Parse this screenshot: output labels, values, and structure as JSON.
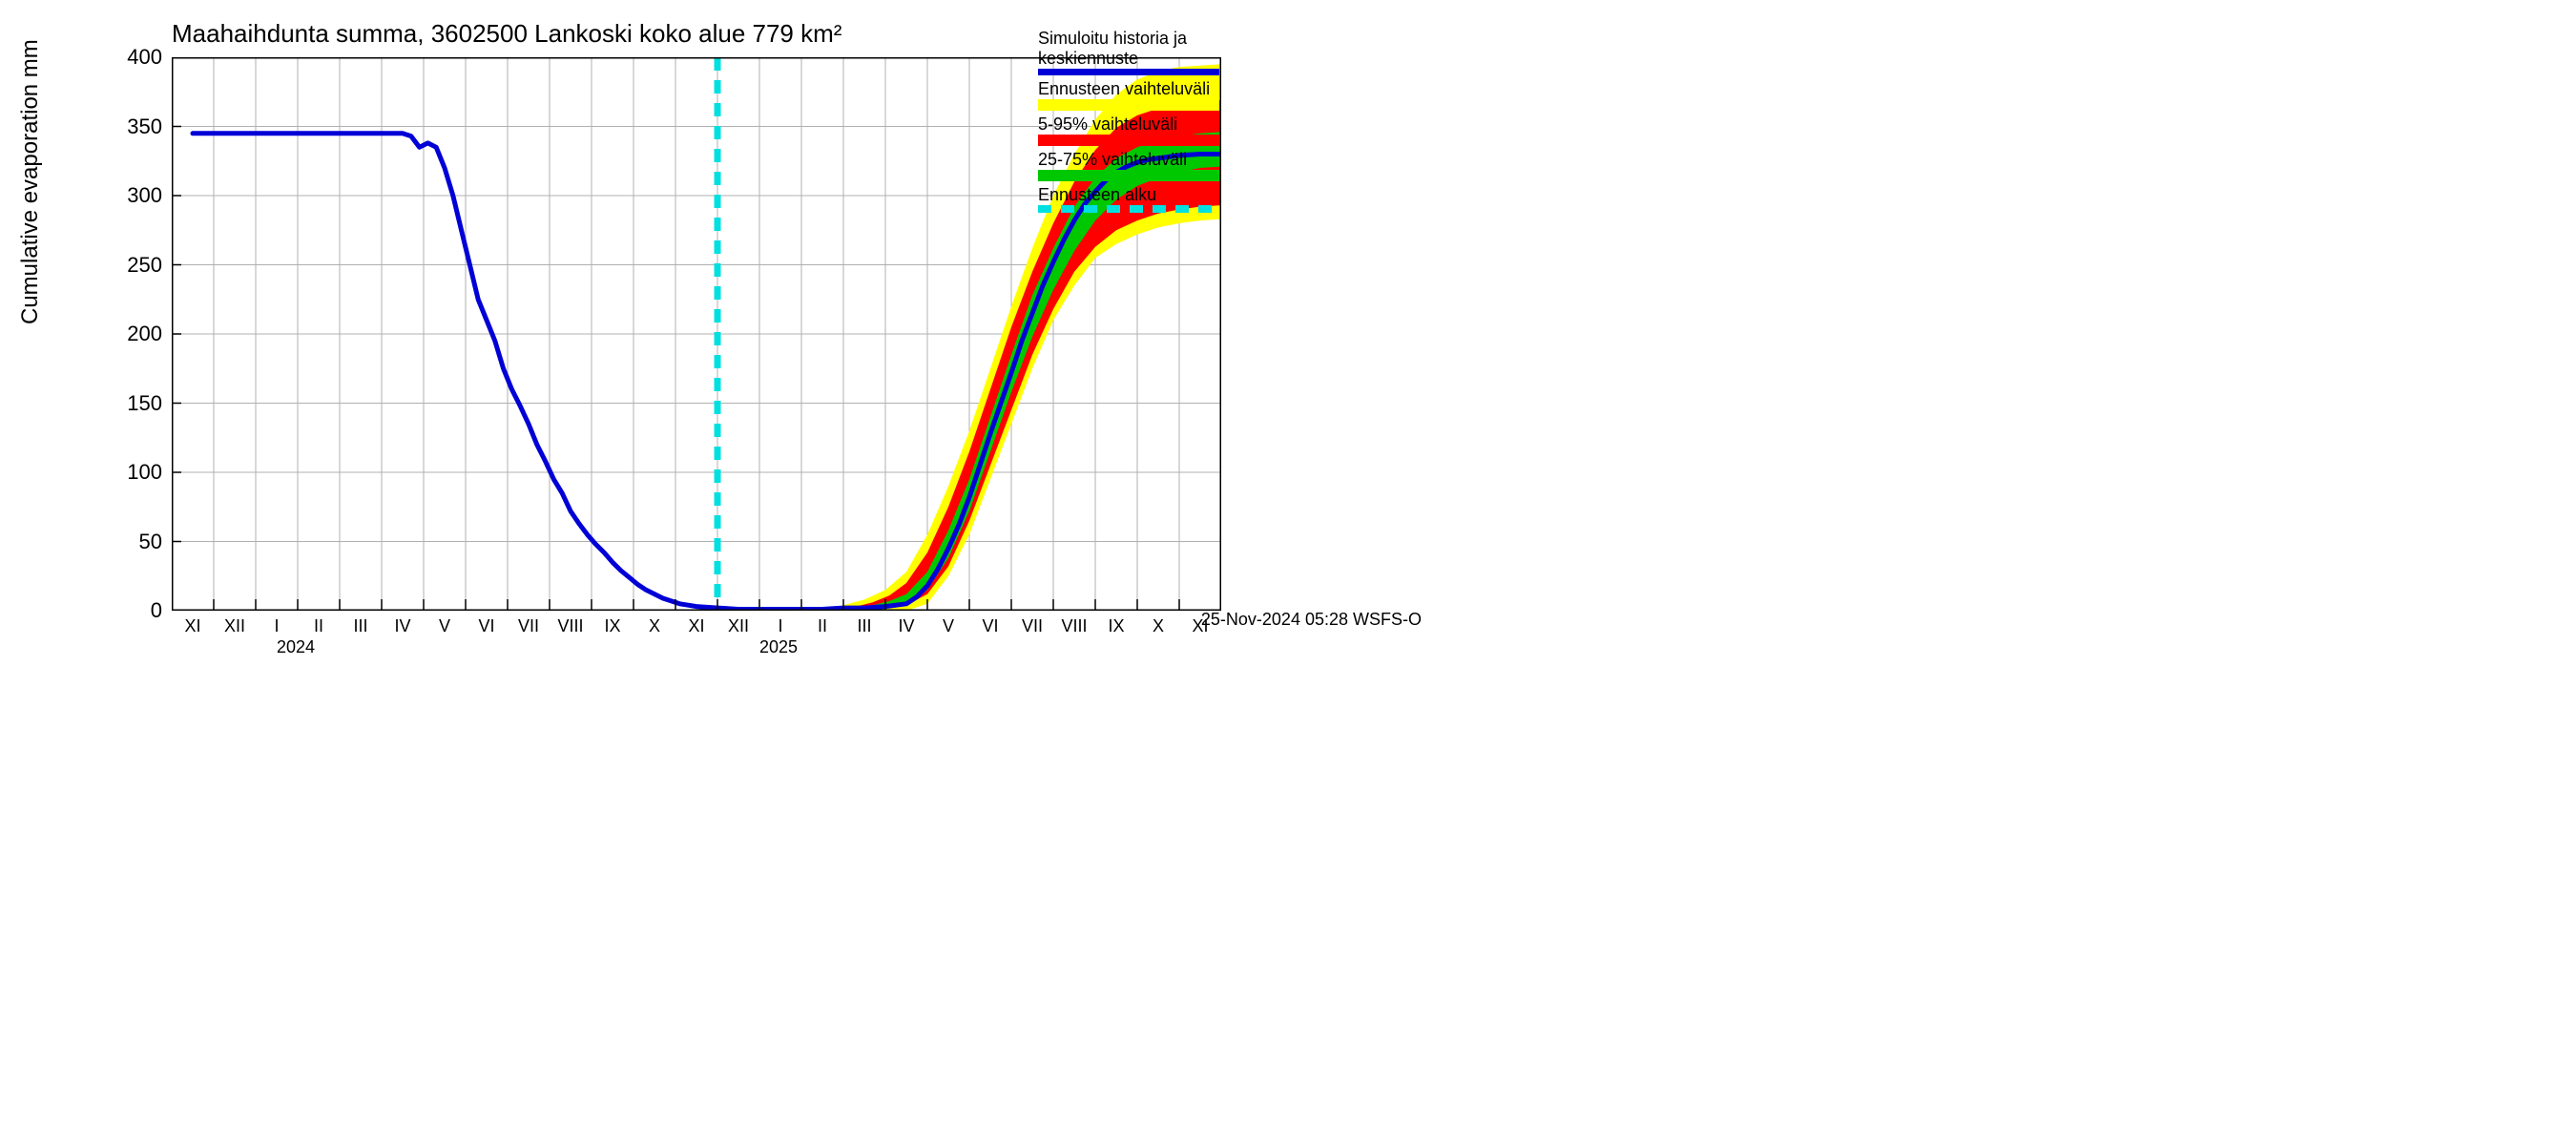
{
  "chart": {
    "type": "line-with-bands",
    "title": "Maahaihdunta summa, 3602500 Lankoski koko alue 779 km²",
    "y_label": "Cumulative evaporation   mm",
    "footer": "25-Nov-2024 05:28 WSFS-O",
    "title_fontsize": 26,
    "axis_label_fontsize": 24,
    "tick_fontsize": 22,
    "legend_fontsize": 18,
    "background_color": "#ffffff",
    "grid_color": "#b0b0b0",
    "axis_color": "#000000",
    "ylim": [
      0,
      400
    ],
    "yticks": [
      0,
      50,
      100,
      150,
      200,
      250,
      300,
      350,
      400
    ],
    "x_months": [
      "XI",
      "XII",
      "I",
      "II",
      "III",
      "IV",
      "V",
      "VI",
      "VII",
      "VIII",
      "IX",
      "X",
      "XI",
      "XII",
      "I",
      "II",
      "III",
      "IV",
      "V",
      "VI",
      "VII",
      "VIII",
      "IX",
      "X",
      "XI"
    ],
    "x_idx_count": 25,
    "year_labels": [
      {
        "text": "2024",
        "at_idx": 2.5
      },
      {
        "text": "2025",
        "at_idx": 14.0
      }
    ],
    "year_divider_at": [
      13.5
    ],
    "minor_xticks_per_month": 2,
    "forecast_start_idx": 12.5,
    "series_main": {
      "color": "#0000d6",
      "width": 5,
      "points": [
        [
          0,
          345
        ],
        [
          0.5,
          345
        ],
        [
          1,
          345
        ],
        [
          1.5,
          345
        ],
        [
          2,
          345
        ],
        [
          2.5,
          345
        ],
        [
          3,
          345
        ],
        [
          3.5,
          345
        ],
        [
          4,
          345
        ],
        [
          4.5,
          345
        ],
        [
          5,
          345
        ],
        [
          5.2,
          343
        ],
        [
          5.4,
          335
        ],
        [
          5.6,
          338
        ],
        [
          5.8,
          335
        ],
        [
          6,
          320
        ],
        [
          6.2,
          300
        ],
        [
          6.4,
          275
        ],
        [
          6.6,
          250
        ],
        [
          6.8,
          225
        ],
        [
          7,
          210
        ],
        [
          7.2,
          195
        ],
        [
          7.4,
          175
        ],
        [
          7.6,
          160
        ],
        [
          7.8,
          148
        ],
        [
          8,
          135
        ],
        [
          8.2,
          120
        ],
        [
          8.4,
          108
        ],
        [
          8.6,
          95
        ],
        [
          8.8,
          85
        ],
        [
          9,
          72
        ],
        [
          9.2,
          63
        ],
        [
          9.4,
          55
        ],
        [
          9.6,
          48
        ],
        [
          9.8,
          42
        ],
        [
          10,
          35
        ],
        [
          10.2,
          29
        ],
        [
          10.4,
          24
        ],
        [
          10.6,
          19
        ],
        [
          10.8,
          15
        ],
        [
          11,
          12
        ],
        [
          11.2,
          9
        ],
        [
          11.4,
          7
        ],
        [
          11.6,
          5
        ],
        [
          11.8,
          4
        ],
        [
          12,
          3
        ],
        [
          12.5,
          2
        ],
        [
          13,
          1
        ],
        [
          13.5,
          1
        ],
        [
          14,
          1
        ],
        [
          14.5,
          1
        ],
        [
          15,
          1
        ],
        [
          15.5,
          2
        ],
        [
          16,
          2
        ],
        [
          16.5,
          3
        ],
        [
          17,
          5
        ],
        [
          17.25,
          10
        ],
        [
          17.5,
          18
        ],
        [
          17.75,
          30
        ],
        [
          18,
          45
        ],
        [
          18.25,
          62
        ],
        [
          18.5,
          82
        ],
        [
          18.75,
          105
        ],
        [
          19,
          128
        ],
        [
          19.25,
          150
        ],
        [
          19.5,
          172
        ],
        [
          19.75,
          195
        ],
        [
          20,
          215
        ],
        [
          20.25,
          235
        ],
        [
          20.5,
          252
        ],
        [
          20.75,
          268
        ],
        [
          21,
          282
        ],
        [
          21.25,
          294
        ],
        [
          21.5,
          303
        ],
        [
          21.75,
          311
        ],
        [
          22,
          317
        ],
        [
          22.25,
          321
        ],
        [
          22.5,
          324
        ],
        [
          22.75,
          326
        ],
        [
          23,
          327
        ],
        [
          23.5,
          329
        ],
        [
          24,
          330
        ],
        [
          24.5,
          330
        ]
      ]
    },
    "band_yellow": {
      "color": "#ffff00",
      "label": "Ennusteen vaihteluväli",
      "lower": [
        [
          15.5,
          0
        ],
        [
          16,
          0
        ],
        [
          16.5,
          0
        ],
        [
          17,
          0
        ],
        [
          17.5,
          5
        ],
        [
          18,
          25
        ],
        [
          18.5,
          55
        ],
        [
          19,
          95
        ],
        [
          19.5,
          135
        ],
        [
          20,
          175
        ],
        [
          20.5,
          210
        ],
        [
          21,
          235
        ],
        [
          21.5,
          255
        ],
        [
          22,
          265
        ],
        [
          22.5,
          272
        ],
        [
          23,
          277
        ],
        [
          23.5,
          280
        ],
        [
          24,
          282
        ],
        [
          24.5,
          283
        ]
      ],
      "upper": [
        [
          15.5,
          4
        ],
        [
          16,
          8
        ],
        [
          16.5,
          15
        ],
        [
          17,
          28
        ],
        [
          17.5,
          55
        ],
        [
          18,
          90
        ],
        [
          18.5,
          130
        ],
        [
          19,
          175
        ],
        [
          19.5,
          220
        ],
        [
          20,
          262
        ],
        [
          20.5,
          300
        ],
        [
          21,
          330
        ],
        [
          21.5,
          355
        ],
        [
          22,
          373
        ],
        [
          22.5,
          384
        ],
        [
          23,
          390
        ],
        [
          23.5,
          393
        ],
        [
          24,
          394
        ],
        [
          24.5,
          395
        ]
      ]
    },
    "band_red": {
      "color": "#ff0000",
      "label": "5-95% vaihteluväli",
      "lower": [
        [
          15.8,
          0
        ],
        [
          16.2,
          1
        ],
        [
          16.6,
          2
        ],
        [
          17,
          4
        ],
        [
          17.5,
          12
        ],
        [
          18,
          32
        ],
        [
          18.5,
          65
        ],
        [
          19,
          105
        ],
        [
          19.5,
          145
        ],
        [
          20,
          185
        ],
        [
          20.5,
          218
        ],
        [
          21,
          245
        ],
        [
          21.5,
          263
        ],
        [
          22,
          275
        ],
        [
          22.5,
          282
        ],
        [
          23,
          287
        ],
        [
          23.5,
          290
        ],
        [
          24,
          292
        ],
        [
          24.5,
          293
        ]
      ],
      "upper": [
        [
          15.8,
          3
        ],
        [
          16.2,
          6
        ],
        [
          16.6,
          11
        ],
        [
          17,
          20
        ],
        [
          17.5,
          42
        ],
        [
          18,
          75
        ],
        [
          18.5,
          115
        ],
        [
          19,
          160
        ],
        [
          19.5,
          205
        ],
        [
          20,
          245
        ],
        [
          20.5,
          280
        ],
        [
          21,
          310
        ],
        [
          21.5,
          333
        ],
        [
          22,
          349
        ],
        [
          22.5,
          358
        ],
        [
          23,
          363
        ],
        [
          23.5,
          366
        ],
        [
          24,
          368
        ],
        [
          24.5,
          369
        ]
      ]
    },
    "band_green": {
      "color": "#00c800",
      "label": "25-75% vaihteluväli",
      "lower": [
        [
          16.2,
          1
        ],
        [
          16.6,
          2
        ],
        [
          17,
          4
        ],
        [
          17.5,
          15
        ],
        [
          18,
          38
        ],
        [
          18.5,
          72
        ],
        [
          19,
          115
        ],
        [
          19.5,
          158
        ],
        [
          20,
          198
        ],
        [
          20.5,
          232
        ],
        [
          21,
          260
        ],
        [
          21.5,
          282
        ],
        [
          22,
          297
        ],
        [
          22.5,
          307
        ],
        [
          23,
          313
        ],
        [
          23.5,
          317
        ],
        [
          24,
          320
        ],
        [
          24.5,
          321
        ]
      ],
      "upper": [
        [
          16.2,
          4
        ],
        [
          16.6,
          7
        ],
        [
          17,
          12
        ],
        [
          17.5,
          28
        ],
        [
          18,
          58
        ],
        [
          18.5,
          95
        ],
        [
          19,
          140
        ],
        [
          19.5,
          185
        ],
        [
          20,
          228
        ],
        [
          20.5,
          262
        ],
        [
          21,
          292
        ],
        [
          21.5,
          313
        ],
        [
          22,
          327
        ],
        [
          22.5,
          335
        ],
        [
          23,
          340
        ],
        [
          23.5,
          343
        ],
        [
          24,
          345
        ],
        [
          24.5,
          346
        ]
      ]
    },
    "forecast_line": {
      "color": "#00e0e0",
      "width": 7,
      "dash": "14 10",
      "label": "Ennusteen alku"
    },
    "legend": [
      {
        "label_lines": [
          "Simuloitu historia ja",
          "keskiennuste"
        ],
        "type": "line",
        "color": "#0000d6"
      },
      {
        "label_lines": [
          "Ennusteen vaihteluväli"
        ],
        "type": "band",
        "color": "#ffff00"
      },
      {
        "label_lines": [
          "5-95% vaihteluväli"
        ],
        "type": "band",
        "color": "#ff0000"
      },
      {
        "label_lines": [
          "25-75% vaihteluväli"
        ],
        "type": "band",
        "color": "#00c800"
      },
      {
        "label_lines": [
          "Ennusteen alku"
        ],
        "type": "dashed",
        "color": "#00e0e0"
      }
    ]
  }
}
